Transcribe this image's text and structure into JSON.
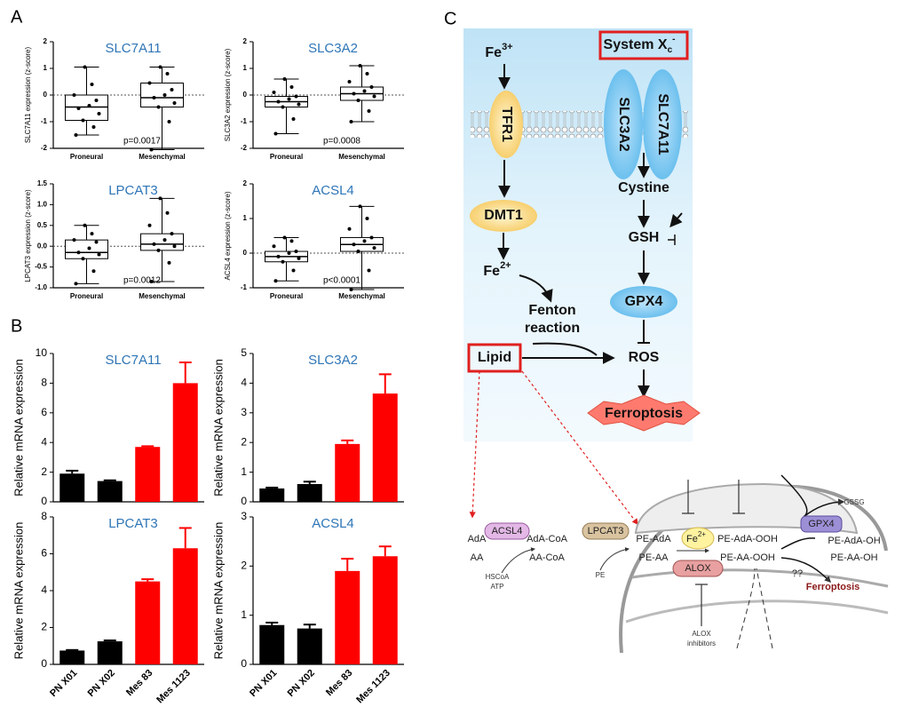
{
  "panel_labels": [
    "A",
    "B",
    "C"
  ],
  "chart_data": [
    {
      "type": "box",
      "title": "SLC7A11",
      "ylabel": "SLC7A11 expression (z-score)",
      "categories": [
        "Proneural",
        "Mesenchymal"
      ],
      "boxes": [
        {
          "min": -1.5,
          "q1": -0.95,
          "median": -0.45,
          "q3": 0.0,
          "max": 1.05
        },
        {
          "min": -2.05,
          "q1": -0.45,
          "median": -0.1,
          "q3": 0.45,
          "max": 1.05
        }
      ],
      "points": [
        [
          -1.5,
          -1.2,
          -0.95,
          -0.7,
          -0.5,
          -0.4,
          -0.2,
          0.0,
          0.4,
          1.05
        ],
        [
          -2.05,
          -1.0,
          -0.45,
          -0.3,
          -0.1,
          0.0,
          0.2,
          0.45,
          0.8,
          1.05
        ]
      ],
      "annotation": "p=0.0017",
      "ylim": [
        -2,
        2
      ],
      "yticks": [
        -2,
        -1,
        0,
        1,
        2
      ],
      "title_color": "#2e75b6"
    },
    {
      "type": "box",
      "title": "SLC3A2",
      "ylabel": "SLC3A2 expression (z-score)",
      "categories": [
        "Proneural",
        "Mesenchymal"
      ],
      "boxes": [
        {
          "min": -1.45,
          "q1": -0.45,
          "median": -0.25,
          "q3": -0.05,
          "max": 0.6
        },
        {
          "min": -1.0,
          "q1": -0.2,
          "median": 0.05,
          "q3": 0.3,
          "max": 1.1
        }
      ],
      "points": [
        [
          -1.45,
          -0.9,
          -0.45,
          -0.35,
          -0.25,
          -0.15,
          -0.05,
          0.1,
          0.3,
          0.6
        ],
        [
          -1.0,
          -0.6,
          -0.2,
          -0.05,
          0.05,
          0.15,
          0.3,
          0.5,
          0.8,
          1.1
        ]
      ],
      "annotation": "p=0.0008",
      "ylim": [
        -2,
        2
      ],
      "yticks": [
        -2,
        -1,
        0,
        1,
        2
      ],
      "title_color": "#2e75b6"
    },
    {
      "type": "box",
      "title": "LPCAT3",
      "ylabel": "LPCAT3 expression (z-score)",
      "categories": [
        "Proneural",
        "Mesenchymal"
      ],
      "boxes": [
        {
          "min": -0.9,
          "q1": -0.3,
          "median": -0.15,
          "q3": 0.15,
          "max": 0.5
        },
        {
          "min": -0.85,
          "q1": -0.1,
          "median": 0.05,
          "q3": 0.3,
          "max": 1.15
        }
      ],
      "points": [
        [
          -0.9,
          -0.6,
          -0.3,
          -0.2,
          -0.15,
          -0.05,
          0.1,
          0.15,
          0.3,
          0.5
        ],
        [
          -0.85,
          -0.4,
          -0.1,
          0.0,
          0.05,
          0.15,
          0.3,
          0.5,
          0.8,
          1.15
        ]
      ],
      "annotation": "p=0.0012",
      "ylim": [
        -1,
        1.5
      ],
      "yticks": [
        {
          "value": -1,
          "label": "-1.0"
        },
        -0.5,
        {
          "value": 0,
          "label": "0.0"
        },
        0.5,
        {
          "value": 1,
          "label": "1.0"
        },
        1.5
      ],
      "title_color": "#2e75b6"
    },
    {
      "type": "box",
      "title": "ACSL4",
      "ylabel": "ACSL4 expression (z-score)",
      "categories": [
        "Proneural",
        "Mesenchymal"
      ],
      "boxes": [
        {
          "min": -0.8,
          "q1": -0.25,
          "median": -0.1,
          "q3": 0.05,
          "max": 0.45
        },
        {
          "min": -1.05,
          "q1": 0.05,
          "median": 0.25,
          "q3": 0.45,
          "max": 1.35
        }
      ],
      "points": [
        [
          -0.8,
          -0.5,
          -0.25,
          -0.15,
          -0.1,
          0.0,
          0.05,
          0.2,
          0.35,
          0.45
        ],
        [
          -1.05,
          -0.5,
          0.05,
          0.15,
          0.25,
          0.35,
          0.45,
          0.7,
          1.0,
          1.35
        ]
      ],
      "annotation": "p<0.0001",
      "ylim": [
        -1,
        2
      ],
      "yticks": [
        -1,
        0,
        1,
        2
      ],
      "title_color": "#2e75b6"
    },
    {
      "type": "bar",
      "title": "SLC7A11",
      "ylabel": "Relative mRNA expression",
      "values": [
        1.9,
        1.4,
        3.7,
        8.0
      ],
      "errors": [
        0.2,
        0.05,
        0.05,
        1.4
      ],
      "colors": [
        "#000000",
        "#000000",
        "#ff0000",
        "#ff0000"
      ],
      "ylim": [
        0,
        10
      ],
      "yticks": [
        0,
        2,
        4,
        6,
        8,
        10
      ],
      "title_color": "#2e75b6"
    },
    {
      "type": "bar",
      "title": "SLC3A2",
      "ylabel": "Relative mRNA expression",
      "values": [
        0.45,
        0.6,
        1.95,
        3.65
      ],
      "errors": [
        0.03,
        0.08,
        0.12,
        0.65
      ],
      "colors": [
        "#000000",
        "#000000",
        "#ff0000",
        "#ff0000"
      ],
      "ylim": [
        0,
        5
      ],
      "yticks": [
        0,
        1,
        2,
        3,
        4,
        5
      ],
      "title_color": "#2e75b6"
    },
    {
      "type": "bar",
      "title": "LPCAT3",
      "ylabel": "Relative mRNA expression",
      "categories": [
        "PN X01",
        "PN X02",
        "Mes 83",
        "Mes 1123"
      ],
      "values": [
        0.75,
        1.25,
        4.5,
        6.3
      ],
      "errors": [
        0.03,
        0.05,
        0.12,
        1.1
      ],
      "colors": [
        "#000000",
        "#000000",
        "#ff0000",
        "#ff0000"
      ],
      "ylim": [
        0,
        8
      ],
      "yticks": [
        0,
        2,
        4,
        6,
        8
      ],
      "title_color": "#2e75b6"
    },
    {
      "type": "bar",
      "title": "ACSL4",
      "ylabel": "Relative mRNA expression",
      "categories": [
        "PN X01",
        "PN X02",
        "Mes 83",
        "Mes 1123"
      ],
      "values": [
        0.8,
        0.73,
        1.9,
        2.2
      ],
      "errors": [
        0.05,
        0.08,
        0.25,
        0.2
      ],
      "colors": [
        "#000000",
        "#000000",
        "#ff0000",
        "#ff0000"
      ],
      "ylim": [
        0,
        3
      ],
      "yticks": [
        0,
        1,
        2,
        3
      ],
      "title_color": "#2e75b6"
    }
  ],
  "diagram": {
    "top": {
      "fe3": {
        "base": "Fe",
        "sup": "3+"
      },
      "tfr1": "TFR1",
      "dmt1": "DMT1",
      "fe2": {
        "base": "Fe",
        "sup": "2+"
      },
      "fenton": [
        "Fenton",
        "reaction"
      ],
      "lipid": "Lipid",
      "system": {
        "base": "System X",
        "sub": "c",
        "sup": "-"
      },
      "slc3a2": "SLC3A2",
      "slc7a11": "SLC7A11",
      "cystine": "Cystine",
      "gsh": "GSH",
      "gpx4": "GPX4",
      "ros": "ROS",
      "ferroptosis": "Ferroptosis"
    },
    "bottom": {
      "ada": "AdA",
      "aa": "AA",
      "acsl4": "ACSL4",
      "ada_coa": "AdA-CoA",
      "aa_coa": "AA-CoA",
      "hscoa": "HSCoA",
      "atp": "ATP",
      "lpcat3": "LPCAT3",
      "pe": "PE",
      "pe_ada": "PE-AdA",
      "pe_aa": "PE-AA",
      "fe2": {
        "base": "Fe",
        "sup": "2+"
      },
      "pe_ada_ooh": "PE-AdA-OOH",
      "pe_aa_ooh": "PE-AA-OOH",
      "alox": "ALOX",
      "alox_inhibitors": [
        "ALOX",
        "inhibitors"
      ],
      "gssg": "GSSG",
      "gpx4": "GPX4",
      "pe_ada_oh": "PE-AdA-OH",
      "pe_aa_oh": "PE-AA-OH",
      "unknown": "??",
      "ferroptosis": "Ferroptosis"
    }
  }
}
